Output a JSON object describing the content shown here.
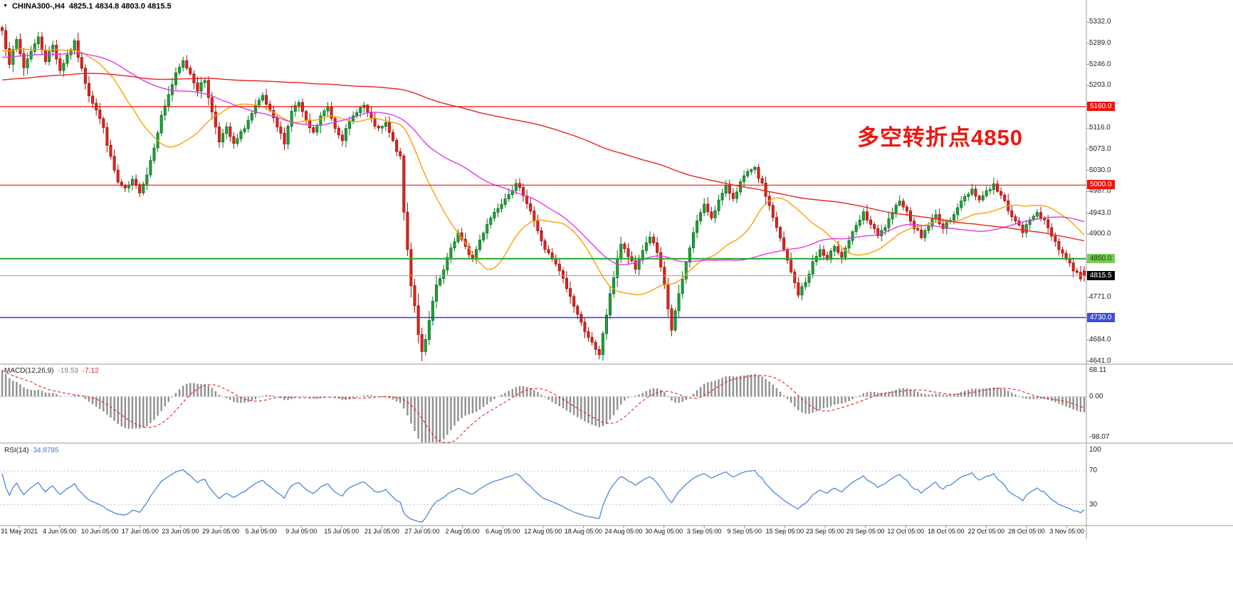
{
  "header": {
    "dropdown_glyph": "▼",
    "title": "CHINA300-,H4",
    "ohlc": "4825.1 4834.8 4803.0 4815.5"
  },
  "annotation": {
    "text": "多空转折点4850",
    "color": "#f01510"
  },
  "price_axis": {
    "ticks": [
      {
        "label": "5332.0",
        "value": 5332
      },
      {
        "label": "5289.0",
        "value": 5289
      },
      {
        "label": "5246.0",
        "value": 5246
      },
      {
        "label": "5203.0",
        "value": 5203
      },
      {
        "label": "5116.0",
        "value": 5116
      },
      {
        "label": "5073.0",
        "value": 5073
      },
      {
        "label": "5030.0",
        "value": 5030
      },
      {
        "label": "4987.0",
        "value": 4987
      },
      {
        "label": "4943.0",
        "value": 4943
      },
      {
        "label": "4900.0",
        "value": 4900
      },
      {
        "label": "4771.0",
        "value": 4771
      },
      {
        "label": "4684.0",
        "value": 4684
      },
      {
        "label": "4641.0",
        "value": 4641
      }
    ]
  },
  "levels": [
    {
      "label": "5160.0",
      "value": 5160,
      "line_color": "#f0120c",
      "line_width": 1.2,
      "tag_bg": "#f0120c",
      "tag_fg": "#ffffff"
    },
    {
      "label": "5000.0",
      "value": 5000,
      "line_color": "#f0120c",
      "line_width": 1.2,
      "tag_bg": "#f0120c",
      "tag_fg": "#ffffff"
    },
    {
      "label": "4850.0",
      "value": 4850,
      "line_color": "#22a32b",
      "line_width": 2,
      "tag_bg": "#77cc55",
      "tag_fg": "#0c3a00"
    },
    {
      "label": "4730.0",
      "value": 4730,
      "line_color": "#2a3bd8",
      "line_width": 1.6,
      "tag_bg": "#3f4ed8",
      "tag_fg": "#ffffff"
    }
  ],
  "current_price": {
    "label": "4815.5",
    "value": 4815.5,
    "line_color": "#9aa0a6",
    "tag_bg": "#0a0a0a",
    "tag_fg": "#ffffff"
  },
  "macd": {
    "name": "MACD(12,26,9)",
    "main_value": "-19.53",
    "signal_value": "-7.12",
    "axis": [
      {
        "label": "68.11",
        "value": 68.11
      },
      {
        "label": "0.00",
        "value": 0
      },
      {
        "label": "-98.07",
        "value": -98.07
      }
    ],
    "histogram_color": "#8f8f8f",
    "signal_color": "#e8231c"
  },
  "rsi": {
    "name": "RSI(14)",
    "value": "34.8785",
    "axis": [
      {
        "label": "100",
        "value": 100
      },
      {
        "label": "70",
        "value": 70
      },
      {
        "label": "30",
        "value": 30
      }
    ],
    "line_color": "#3e7fd6",
    "levels": [
      70,
      30
    ]
  },
  "chart_data": {
    "type": "candlestick",
    "symbol": "CHINA300-",
    "timeframe": "H4",
    "title": "CHINA300-,H4",
    "last_bar": {
      "open": 4825.1,
      "high": 4834.8,
      "low": 4803.0,
      "close": 4815.5
    },
    "ylim": [
      4638,
      5357
    ],
    "bars": 300,
    "x_labels": [
      "31 May 2021",
      "4 Jun 05:00",
      "10 Jun 05:00",
      "17 Jun 05:00",
      "23 Jun 05:00",
      "29 Jun 05:00",
      "5 Jul 05:00",
      "9 Jul 05:00",
      "15 Jul 05:00",
      "21 Jul 05:00",
      "27 Jul 05:00",
      "2 Aug 05:00",
      "6 Aug 05:00",
      "12 Aug 05:00",
      "18 Aug 05:00",
      "24 Aug 05:00",
      "30 Aug 05:00",
      "3 Sep 05:00",
      "9 Sep 05:00",
      "15 Sep 05:00",
      "23 Sep 05:00",
      "29 Sep 05:00",
      "12 Oct 05:00",
      "18 Oct 05:00",
      "22 Oct 05:00",
      "28 Oct 05:00",
      "3 Nov 05:00"
    ],
    "close_anchors": [
      [
        0,
        5315
      ],
      [
        2,
        5250
      ],
      [
        4,
        5295
      ],
      [
        6,
        5240
      ],
      [
        8,
        5275
      ],
      [
        10,
        5300
      ],
      [
        12,
        5255
      ],
      [
        14,
        5285
      ],
      [
        16,
        5235
      ],
      [
        18,
        5265
      ],
      [
        20,
        5290
      ],
      [
        22,
        5235
      ],
      [
        24,
        5185
      ],
      [
        26,
        5155
      ],
      [
        28,
        5115
      ],
      [
        30,
        5055
      ],
      [
        32,
        5005
      ],
      [
        34,
        4990
      ],
      [
        36,
        5008
      ],
      [
        38,
        4988
      ],
      [
        40,
        5022
      ],
      [
        42,
        5080
      ],
      [
        44,
        5140
      ],
      [
        46,
        5185
      ],
      [
        48,
        5225
      ],
      [
        50,
        5252
      ],
      [
        52,
        5228
      ],
      [
        54,
        5195
      ],
      [
        56,
        5215
      ],
      [
        58,
        5148
      ],
      [
        60,
        5092
      ],
      [
        62,
        5115
      ],
      [
        64,
        5082
      ],
      [
        66,
        5105
      ],
      [
        68,
        5132
      ],
      [
        70,
        5158
      ],
      [
        72,
        5180
      ],
      [
        74,
        5148
      ],
      [
        76,
        5118
      ],
      [
        78,
        5088
      ],
      [
        80,
        5152
      ],
      [
        82,
        5168
      ],
      [
        84,
        5128
      ],
      [
        86,
        5105
      ],
      [
        88,
        5140
      ],
      [
        90,
        5158
      ],
      [
        92,
        5118
      ],
      [
        94,
        5095
      ],
      [
        96,
        5128
      ],
      [
        98,
        5152
      ],
      [
        100,
        5162
      ],
      [
        102,
        5132
      ],
      [
        104,
        5112
      ],
      [
        106,
        5125
      ],
      [
        108,
        5088
      ],
      [
        110,
        5055
      ],
      [
        111,
        4945
      ],
      [
        112,
        4868
      ],
      [
        113,
        4798
      ],
      [
        114,
        4755
      ],
      [
        115,
        4698
      ],
      [
        116,
        4658
      ],
      [
        117,
        4682
      ],
      [
        118,
        4722
      ],
      [
        119,
        4762
      ],
      [
        120,
        4792
      ],
      [
        122,
        4825
      ],
      [
        124,
        4872
      ],
      [
        126,
        4902
      ],
      [
        128,
        4872
      ],
      [
        130,
        4850
      ],
      [
        132,
        4888
      ],
      [
        134,
        4922
      ],
      [
        136,
        4945
      ],
      [
        138,
        4965
      ],
      [
        140,
        4985
      ],
      [
        142,
        5000
      ],
      [
        144,
        4982
      ],
      [
        146,
        4948
      ],
      [
        148,
        4905
      ],
      [
        150,
        4870
      ],
      [
        152,
        4848
      ],
      [
        154,
        4825
      ],
      [
        156,
        4790
      ],
      [
        158,
        4755
      ],
      [
        160,
        4718
      ],
      [
        162,
        4692
      ],
      [
        164,
        4662
      ],
      [
        165,
        4652
      ],
      [
        166,
        4698
      ],
      [
        168,
        4775
      ],
      [
        170,
        4852
      ],
      [
        171,
        4880
      ],
      [
        173,
        4855
      ],
      [
        175,
        4828
      ],
      [
        177,
        4868
      ],
      [
        179,
        4896
      ],
      [
        181,
        4862
      ],
      [
        183,
        4795
      ],
      [
        184,
        4748
      ],
      [
        185,
        4705
      ],
      [
        186,
        4742
      ],
      [
        188,
        4808
      ],
      [
        190,
        4875
      ],
      [
        192,
        4928
      ],
      [
        194,
        4958
      ],
      [
        196,
        4935
      ],
      [
        198,
        4968
      ],
      [
        200,
        4995
      ],
      [
        202,
        4975
      ],
      [
        204,
        5005
      ],
      [
        206,
        5025
      ],
      [
        208,
        5032
      ],
      [
        210,
        5000
      ],
      [
        212,
        4958
      ],
      [
        214,
        4912
      ],
      [
        216,
        4868
      ],
      [
        218,
        4822
      ],
      [
        220,
        4778
      ],
      [
        222,
        4802
      ],
      [
        224,
        4842
      ],
      [
        226,
        4868
      ],
      [
        228,
        4845
      ],
      [
        230,
        4878
      ],
      [
        232,
        4855
      ],
      [
        234,
        4888
      ],
      [
        236,
        4915
      ],
      [
        238,
        4942
      ],
      [
        240,
        4920
      ],
      [
        242,
        4895
      ],
      [
        244,
        4915
      ],
      [
        246,
        4940
      ],
      [
        248,
        4972
      ],
      [
        250,
        4945
      ],
      [
        252,
        4915
      ],
      [
        254,
        4895
      ],
      [
        256,
        4918
      ],
      [
        258,
        4938
      ],
      [
        260,
        4912
      ],
      [
        262,
        4932
      ],
      [
        264,
        4955
      ],
      [
        266,
        4975
      ],
      [
        268,
        4992
      ],
      [
        270,
        4970
      ],
      [
        272,
        4988
      ],
      [
        274,
        5000
      ],
      [
        276,
        4978
      ],
      [
        278,
        4952
      ],
      [
        280,
        4925
      ],
      [
        282,
        4905
      ],
      [
        284,
        4928
      ],
      [
        286,
        4948
      ],
      [
        288,
        4925
      ],
      [
        290,
        4898
      ],
      [
        292,
        4872
      ],
      [
        294,
        4850
      ],
      [
        296,
        4828
      ],
      [
        298,
        4812
      ],
      [
        299,
        4815.5
      ]
    ],
    "colors": {
      "up_fill": "#1fa33a",
      "up_stroke": "#0b6e20",
      "down_fill": "#e3261d",
      "down_stroke": "#9c0f0a"
    },
    "moving_averages": [
      {
        "period": 24,
        "color": "#ff9d00"
      },
      {
        "period": 60,
        "color": "#e23ae2"
      },
      {
        "period": 190,
        "color": "#e8231c"
      }
    ],
    "hlines": [
      5160,
      5000,
      4850,
      4730
    ],
    "indicators": [
      {
        "name": "MACD",
        "params": [
          12,
          26,
          9
        ],
        "values": [
          -19.53,
          -7.12
        ]
      },
      {
        "name": "RSI",
        "params": [
          14
        ],
        "value": 34.8785
      }
    ],
    "annotation": "多空转折点4850"
  }
}
